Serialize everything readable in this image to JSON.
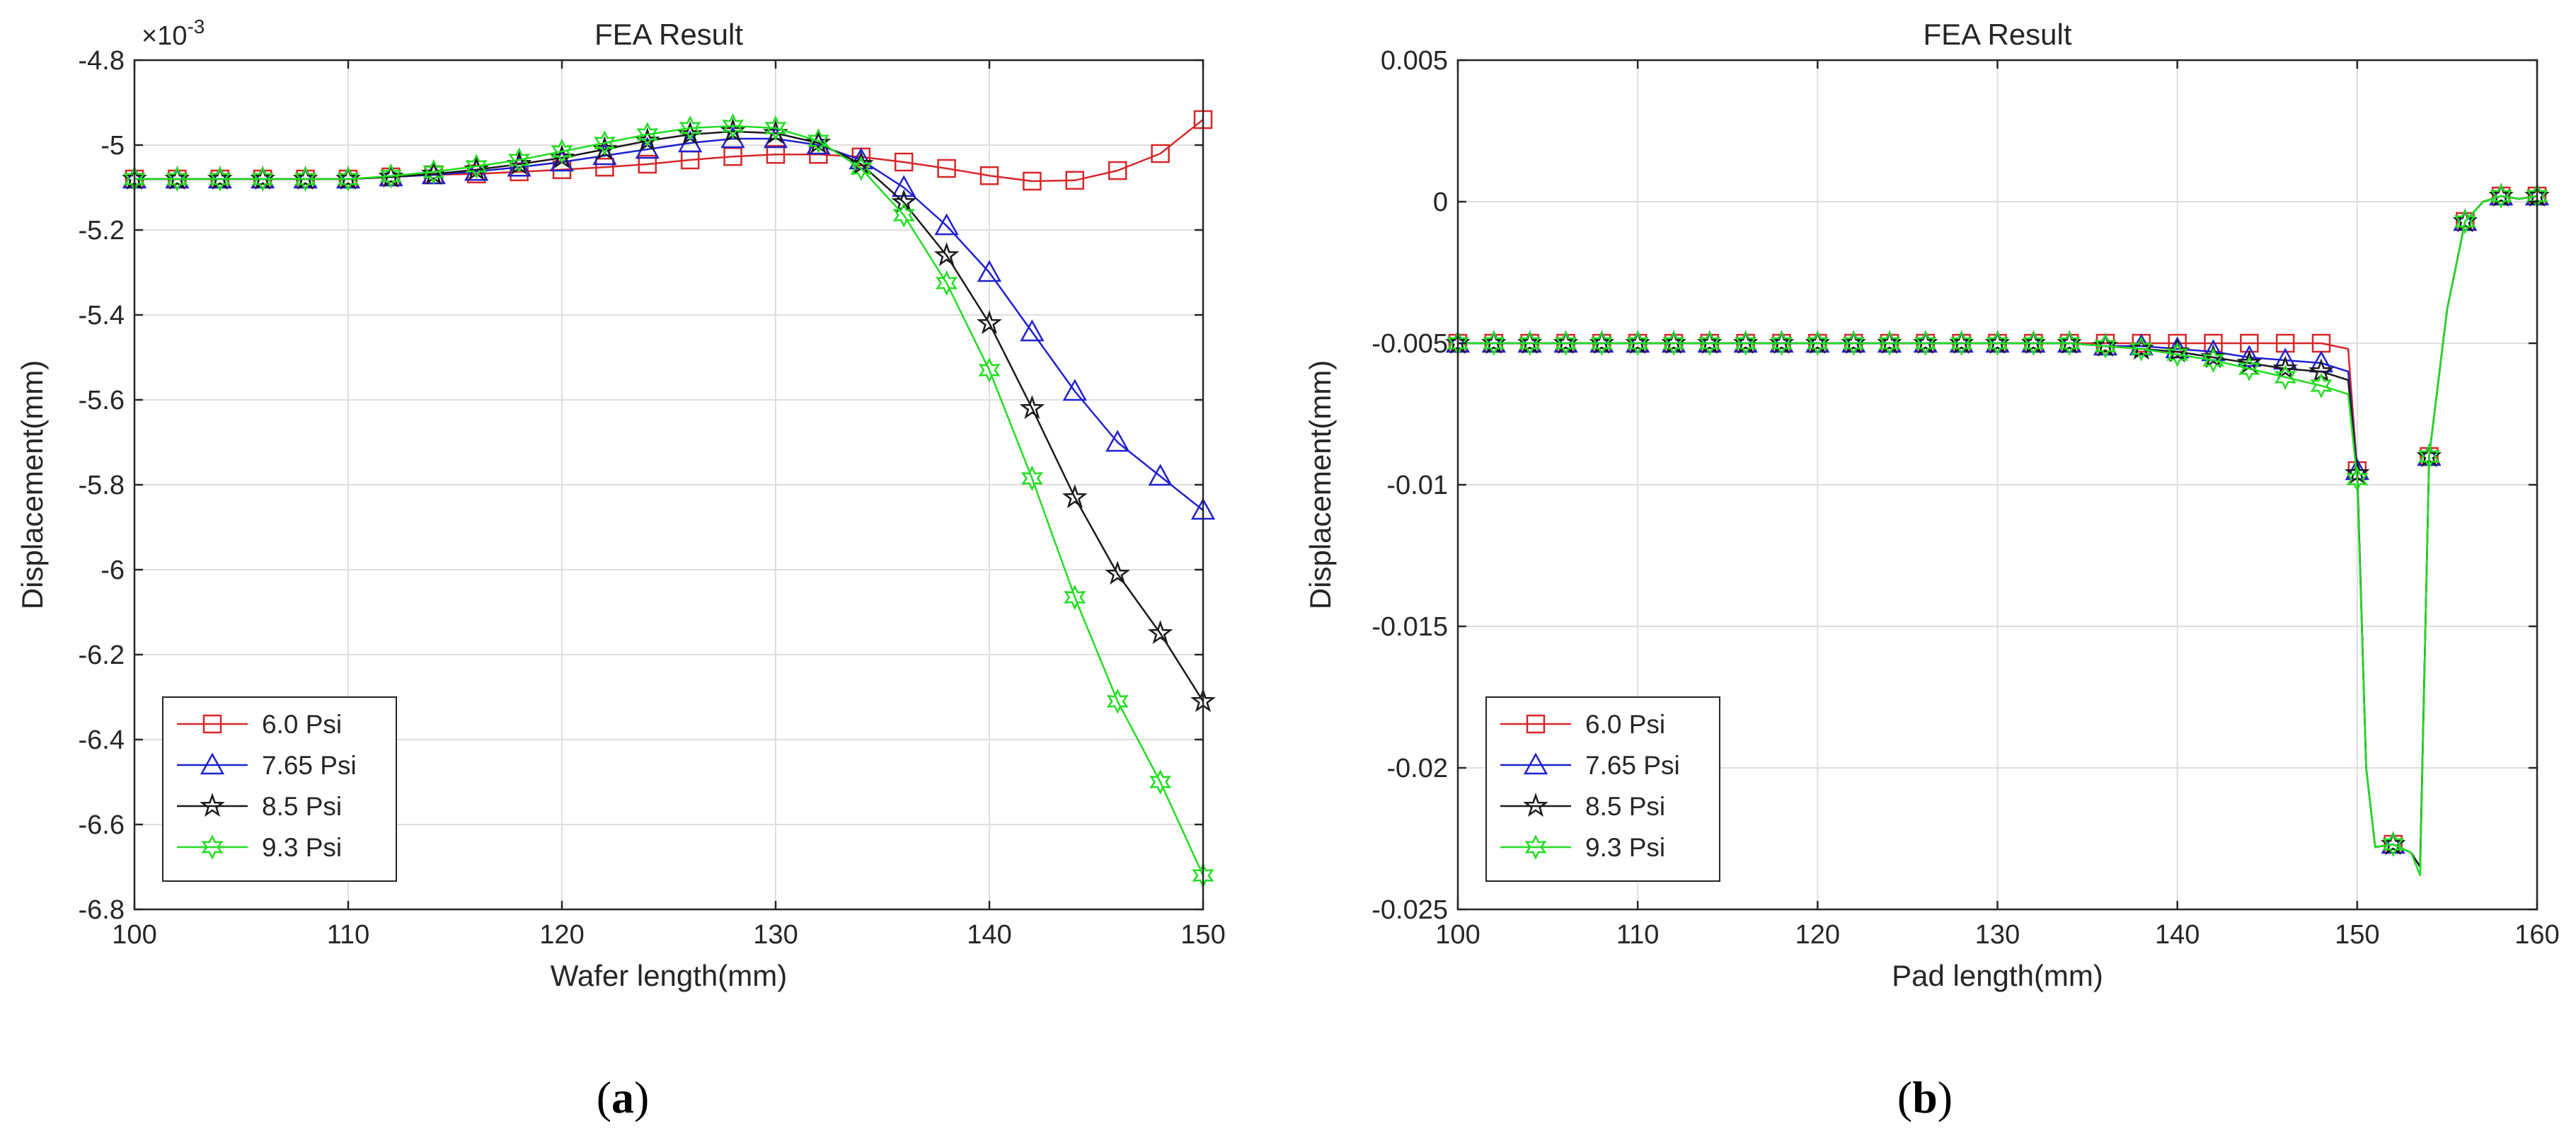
{
  "figure": {
    "label_a": "(a)",
    "label_b": "(b)",
    "label_a_letter": "a",
    "label_b_letter": "b"
  },
  "chart_data": [
    {
      "type": "line",
      "title": "FEA Result",
      "xlabel": "Wafer length(mm)",
      "ylabel": "Displacement(mm)",
      "exponent_label": "×10-3",
      "exponent_base": "×10",
      "exponent_power": "-3",
      "xlim": [
        100,
        150
      ],
      "ylim": [
        -6.8,
        -4.8
      ],
      "xticks": [
        100,
        110,
        120,
        130,
        140,
        150
      ],
      "yticks": [
        -6.8,
        -6.6,
        -6.4,
        -6.2,
        -6.0,
        -5.8,
        -5.6,
        -5.4,
        -5.2,
        -5.0,
        -4.8
      ],
      "ytick_labels": [
        "-6.8",
        "-6.6",
        "-6.4",
        "-6.2",
        "-6",
        "-5.8",
        "-5.6",
        "-5.4",
        "-5.2",
        "-5",
        "-4.8"
      ],
      "xtick_labels": [
        "100",
        "110",
        "120",
        "130",
        "140",
        "150"
      ],
      "grid": true,
      "legend_position": "bottom-left",
      "series": [
        {
          "name": "6.0 Psi",
          "color": "#d62728",
          "marker": "square",
          "x": [
            100,
            102,
            104,
            106,
            108,
            110,
            112,
            114,
            116,
            118,
            120,
            122,
            124,
            126,
            128,
            130,
            132,
            134,
            136,
            138,
            140,
            142,
            144,
            146,
            148,
            150
          ],
          "y": [
            -5.08,
            -5.08,
            -5.08,
            -5.08,
            -5.08,
            -5.08,
            -5.075,
            -5.07,
            -5.068,
            -5.063,
            -5.058,
            -5.052,
            -5.045,
            -5.035,
            -5.027,
            -5.022,
            -5.022,
            -5.028,
            -5.04,
            -5.055,
            -5.072,
            -5.085,
            -5.083,
            -5.06,
            -5.02,
            -4.94
          ]
        },
        {
          "name": "7.65 Psi",
          "color": "#2020d0",
          "marker": "triangle",
          "x": [
            100,
            102,
            104,
            106,
            108,
            110,
            112,
            114,
            116,
            118,
            120,
            122,
            124,
            126,
            128,
            130,
            132,
            134,
            136,
            138,
            140,
            142,
            144,
            146,
            148,
            150
          ],
          "y": [
            -5.08,
            -5.08,
            -5.08,
            -5.08,
            -5.08,
            -5.08,
            -5.075,
            -5.07,
            -5.062,
            -5.052,
            -5.04,
            -5.025,
            -5.01,
            -4.995,
            -4.985,
            -4.985,
            -5.0,
            -5.035,
            -5.1,
            -5.19,
            -5.3,
            -5.44,
            -5.58,
            -5.7,
            -5.78,
            -5.86
          ]
        },
        {
          "name": "8.5 Psi",
          "color": "#1a1a1a",
          "marker": "star",
          "x": [
            100,
            102,
            104,
            106,
            108,
            110,
            112,
            114,
            116,
            118,
            120,
            122,
            124,
            126,
            128,
            130,
            132,
            134,
            136,
            138,
            140,
            142,
            144,
            146,
            148,
            150
          ],
          "y": [
            -5.08,
            -5.08,
            -5.08,
            -5.08,
            -5.08,
            -5.08,
            -5.075,
            -5.068,
            -5.058,
            -5.045,
            -5.03,
            -5.01,
            -4.99,
            -4.975,
            -4.968,
            -4.972,
            -4.995,
            -5.045,
            -5.135,
            -5.26,
            -5.42,
            -5.62,
            -5.83,
            -6.01,
            -6.15,
            -6.31
          ]
        },
        {
          "name": "9.3 Psi",
          "color": "#22dd22",
          "marker": "hexagram",
          "x": [
            100,
            102,
            104,
            106,
            108,
            110,
            112,
            114,
            116,
            118,
            120,
            122,
            124,
            126,
            128,
            130,
            132,
            134,
            136,
            138,
            140,
            142,
            144,
            146,
            148,
            150
          ],
          "y": [
            -5.08,
            -5.08,
            -5.08,
            -5.08,
            -5.08,
            -5.08,
            -5.073,
            -5.063,
            -5.05,
            -5.035,
            -5.015,
            -4.995,
            -4.975,
            -4.96,
            -4.955,
            -4.96,
            -4.99,
            -5.055,
            -5.165,
            -5.325,
            -5.53,
            -5.785,
            -6.065,
            -6.31,
            -6.5,
            -6.72
          ]
        }
      ]
    },
    {
      "type": "line",
      "title": "FEA Result",
      "xlabel": "Pad length(mm)",
      "ylabel": "Displacement(mm)",
      "xlim": [
        100,
        160
      ],
      "ylim": [
        -0.025,
        0.005
      ],
      "xticks": [
        100,
        110,
        120,
        130,
        140,
        150,
        160
      ],
      "xtick_labels": [
        "100",
        "110",
        "120",
        "130",
        "140",
        "150",
        "160"
      ],
      "yticks": [
        -0.025,
        -0.02,
        -0.015,
        -0.01,
        -0.005,
        0,
        0.005
      ],
      "ytick_labels": [
        "-0.025",
        "-0.02",
        "-0.015",
        "-0.01",
        "-0.005",
        "0",
        "0.005"
      ],
      "grid": true,
      "legend_position": "bottom-left",
      "series": [
        {
          "name": "6.0 Psi",
          "color": "#d62728",
          "marker": "square",
          "x": [
            100,
            102,
            104,
            106,
            108,
            110,
            112,
            114,
            116,
            118,
            120,
            122,
            124,
            126,
            128,
            130,
            132,
            134,
            136,
            138,
            140,
            142,
            144,
            146,
            148,
            149.5,
            150,
            150.5,
            151,
            152,
            153,
            153.5,
            154,
            155,
            156,
            157,
            158,
            159,
            160
          ],
          "y": [
            -0.005,
            -0.005,
            -0.005,
            -0.005,
            -0.005,
            -0.005,
            -0.005,
            -0.005,
            -0.005,
            -0.005,
            -0.005,
            -0.005,
            -0.005,
            -0.005,
            -0.005,
            -0.005,
            -0.005,
            -0.005,
            -0.005,
            -0.005,
            -0.005,
            -0.005,
            -0.005,
            -0.005,
            -0.005,
            -0.0052,
            -0.0095,
            -0.02,
            -0.0228,
            -0.0227,
            -0.023,
            -0.0235,
            -0.009,
            -0.0038,
            -0.0007,
            0.0,
            0.0002,
            0.0001,
            0.0002
          ]
        },
        {
          "name": "7.65 Psi",
          "color": "#2020d0",
          "marker": "triangle",
          "x": [
            100,
            102,
            104,
            106,
            108,
            110,
            112,
            114,
            116,
            118,
            120,
            122,
            124,
            126,
            128,
            130,
            132,
            134,
            136,
            138,
            140,
            142,
            144,
            146,
            148,
            149.5,
            150,
            150.5,
            151,
            152,
            153,
            153.5,
            154,
            155,
            156,
            157,
            158,
            159,
            160
          ],
          "y": [
            -0.005,
            -0.005,
            -0.005,
            -0.005,
            -0.005,
            -0.005,
            -0.005,
            -0.005,
            -0.005,
            -0.005,
            -0.005,
            -0.005,
            -0.005,
            -0.005,
            -0.005,
            -0.005,
            -0.005,
            -0.005,
            -0.0051,
            -0.0051,
            -0.0052,
            -0.0053,
            -0.0055,
            -0.0056,
            -0.0057,
            -0.006,
            -0.0095,
            -0.02,
            -0.0228,
            -0.0227,
            -0.023,
            -0.0235,
            -0.009,
            -0.0038,
            -0.0007,
            0.0,
            0.0002,
            0.0001,
            0.0002
          ]
        },
        {
          "name": "8.5 Psi",
          "color": "#1a1a1a",
          "marker": "star",
          "x": [
            100,
            102,
            104,
            106,
            108,
            110,
            112,
            114,
            116,
            118,
            120,
            122,
            124,
            126,
            128,
            130,
            132,
            134,
            136,
            138,
            140,
            142,
            144,
            146,
            148,
            149.5,
            150,
            150.5,
            151,
            152,
            153,
            153.5,
            154,
            155,
            156,
            157,
            158,
            159,
            160
          ],
          "y": [
            -0.005,
            -0.005,
            -0.005,
            -0.005,
            -0.005,
            -0.005,
            -0.005,
            -0.005,
            -0.005,
            -0.005,
            -0.005,
            -0.005,
            -0.005,
            -0.005,
            -0.005,
            -0.005,
            -0.005,
            -0.005,
            -0.0051,
            -0.0052,
            -0.0053,
            -0.0055,
            -0.0057,
            -0.0059,
            -0.006,
            -0.0063,
            -0.0096,
            -0.02,
            -0.0228,
            -0.0227,
            -0.023,
            -0.0235,
            -0.009,
            -0.0038,
            -0.0007,
            0.0,
            0.0002,
            0.0001,
            0.0002
          ]
        },
        {
          "name": "9.3 Psi",
          "color": "#22dd22",
          "marker": "hexagram",
          "x": [
            100,
            102,
            104,
            106,
            108,
            110,
            112,
            114,
            116,
            118,
            120,
            122,
            124,
            126,
            128,
            130,
            132,
            134,
            136,
            138,
            140,
            142,
            144,
            146,
            148,
            149.5,
            150,
            150.5,
            151,
            152,
            153,
            153.5,
            154,
            155,
            156,
            157,
            158,
            159,
            160
          ],
          "y": [
            -0.005,
            -0.005,
            -0.005,
            -0.005,
            -0.005,
            -0.005,
            -0.005,
            -0.005,
            -0.005,
            -0.005,
            -0.005,
            -0.005,
            -0.005,
            -0.005,
            -0.005,
            -0.005,
            -0.005,
            -0.005,
            -0.0051,
            -0.0052,
            -0.0054,
            -0.0056,
            -0.0059,
            -0.0062,
            -0.0065,
            -0.0068,
            -0.0098,
            -0.02,
            -0.0228,
            -0.0227,
            -0.023,
            -0.0238,
            -0.009,
            -0.0038,
            -0.0007,
            0.0,
            0.0002,
            0.0001,
            0.0002
          ]
        }
      ]
    }
  ]
}
